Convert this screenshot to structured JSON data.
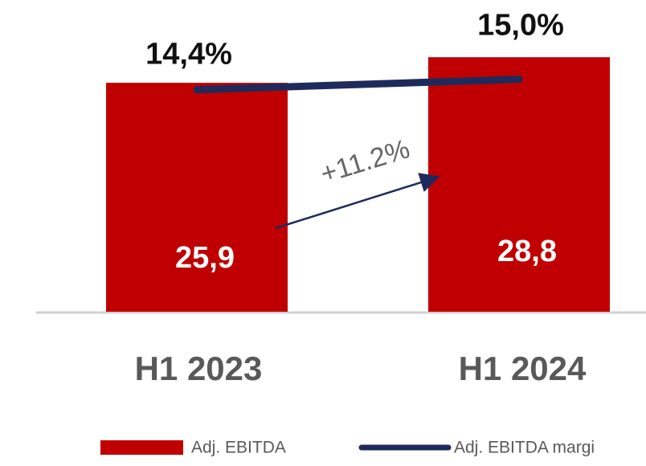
{
  "chart_data": {
    "type": "bar_line",
    "categories": [
      "H1 2023",
      "H1 2024"
    ],
    "series": [
      {
        "name": "Adj. EBITDA",
        "type": "bar",
        "color": "#c00000",
        "values": [
          25.9,
          28.8
        ],
        "value_labels": [
          "25,9",
          "28,8"
        ]
      },
      {
        "name": "Adj. EBITDA margi",
        "type": "line",
        "axis": "y2",
        "color": "#1f2a5c",
        "values": [
          14.4,
          15.0
        ],
        "value_labels": [
          "14,4%",
          "15,0%"
        ]
      }
    ],
    "ylim": [
      0,
      30
    ],
    "y2lim": [
      10,
      16
    ],
    "annotations": [
      "+11.2%"
    ],
    "legend": "bottom"
  }
}
